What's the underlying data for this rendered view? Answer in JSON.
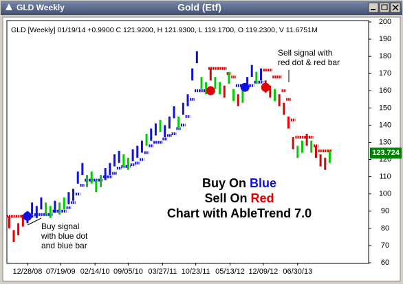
{
  "window": {
    "title": "GLD Weekly",
    "caption": "Gold (Etf)"
  },
  "chart_data": {
    "type": "ohlc-bars",
    "info": "GLD [Weekly] 01/19/14 +0.9900 C 121.9200, H 121.9300, L 119.1700, O 119.2300, V 11.6751M",
    "xlim": [
      -18,
      298
    ],
    "ylim": [
      60,
      200
    ],
    "xticks": [
      {
        "value": 0,
        "label": "12/28/08"
      },
      {
        "value": 29,
        "label": "07/19/09"
      },
      {
        "value": 59,
        "label": "02/14/10"
      },
      {
        "value": 88,
        "label": "09/05/10"
      },
      {
        "value": 118,
        "label": "03/27/11"
      },
      {
        "value": 147,
        "label": "10/23/11"
      },
      {
        "value": 177,
        "label": "05/13/12"
      },
      {
        "value": 206,
        "label": "12/09/12"
      },
      {
        "value": 236,
        "label": "06/30/13"
      }
    ],
    "yticks": [
      60,
      70,
      80,
      90,
      100,
      110,
      120,
      130,
      140,
      150,
      160,
      170,
      180,
      190,
      200
    ],
    "bars": {
      "x": [
        -16,
        -12,
        -8,
        -4,
        0,
        4,
        8,
        12,
        16,
        20,
        24,
        28,
        32,
        36,
        40,
        44,
        48,
        52,
        56,
        60,
        64,
        68,
        72,
        76,
        80,
        84,
        88,
        92,
        96,
        100,
        104,
        108,
        112,
        116,
        120,
        124,
        128,
        132,
        136,
        140,
        144,
        148,
        152,
        156,
        160,
        164,
        168,
        172,
        176,
        180,
        184,
        188,
        192,
        196,
        200,
        204,
        208,
        212,
        216,
        220,
        224,
        228,
        232,
        236,
        240,
        244,
        248,
        252,
        256,
        260,
        264
      ],
      "high": [
        87,
        79,
        83,
        88,
        90,
        95,
        93,
        98,
        95,
        93,
        96,
        95,
        98,
        101,
        103,
        113,
        118,
        111,
        113,
        108,
        111,
        115,
        118,
        123,
        125,
        123,
        121,
        126,
        128,
        131,
        135,
        138,
        141,
        143,
        140,
        145,
        151,
        145,
        153,
        158,
        173,
        183,
        168,
        165,
        173,
        168,
        165,
        163,
        171,
        161,
        158,
        160,
        168,
        175,
        171,
        173,
        166,
        163,
        161,
        158,
        153,
        145,
        133,
        128,
        131,
        135,
        131,
        128,
        123,
        121,
        125
      ],
      "low": [
        80,
        72,
        76,
        81,
        83,
        88,
        86,
        91,
        88,
        86,
        89,
        88,
        91,
        94,
        96,
        106,
        111,
        104,
        106,
        101,
        104,
        108,
        111,
        116,
        118,
        116,
        114,
        119,
        121,
        124,
        128,
        131,
        134,
        136,
        133,
        138,
        144,
        138,
        146,
        151,
        166,
        176,
        161,
        158,
        166,
        161,
        158,
        156,
        164,
        154,
        151,
        153,
        161,
        168,
        164,
        166,
        159,
        156,
        154,
        151,
        146,
        138,
        126,
        121,
        124,
        128,
        124,
        121,
        116,
        114,
        118
      ],
      "colors": [
        "#e00000",
        "#e00000",
        "#e00000",
        "#e00000",
        "#1010e0",
        "#1010e0",
        "#1010e0",
        "#1010e0",
        "#00cc00",
        "#00cc00",
        "#1010e0",
        "#00cc00",
        "#00cc00",
        "#1010e0",
        "#1010e0",
        "#1010e0",
        "#1010e0",
        "#00cc00",
        "#00cc00",
        "#00cc00",
        "#00cc00",
        "#1010e0",
        "#1010e0",
        "#1010e0",
        "#1010e0",
        "#00cc00",
        "#00cc00",
        "#1010e0",
        "#1010e0",
        "#1010e0",
        "#00cc00",
        "#1010e0",
        "#1010e0",
        "#00cc00",
        "#1010e0",
        "#1010e0",
        "#1010e0",
        "#00cc00",
        "#1010e0",
        "#1010e0",
        "#1010e0",
        "#1010e0",
        "#00cc00",
        "#00cc00",
        "#e00000",
        "#00cc00",
        "#00cc00",
        "#e00000",
        "#00cc00",
        "#00cc00",
        "#e00000",
        "#00cc00",
        "#1010e0",
        "#1010e0",
        "#00cc00",
        "#1010e0",
        "#e00000",
        "#e00000",
        "#00cc00",
        "#e00000",
        "#e00000",
        "#e00000",
        "#e00000",
        "#00cc00",
        "#00cc00",
        "#e00000",
        "#00cc00",
        "#e00000",
        "#e00000",
        "#e00000",
        "#00cc00"
      ]
    },
    "stops": {
      "values": [
        87,
        87,
        87,
        87,
        87,
        87,
        88,
        88,
        88,
        88,
        90,
        90,
        90,
        92,
        95,
        100,
        105,
        108,
        108,
        108,
        108,
        110,
        110,
        112,
        115,
        116,
        116,
        117,
        118,
        120,
        124,
        128,
        130,
        130,
        132,
        134,
        135,
        138,
        140,
        145,
        155,
        160,
        160,
        160,
        173,
        173,
        173,
        173,
        170,
        168,
        163,
        163,
        163,
        163,
        165,
        165,
        172,
        172,
        168,
        168,
        160,
        155,
        143,
        133,
        133,
        133,
        133,
        128,
        125,
        125,
        125
      ],
      "colors": [
        "#e00000",
        "#e00000",
        "#e00000",
        "#e00000",
        "#1010e0",
        "#1010e0",
        "#1010e0",
        "#1010e0",
        "#1010e0",
        "#1010e0",
        "#1010e0",
        "#1010e0",
        "#1010e0",
        "#1010e0",
        "#1010e0",
        "#1010e0",
        "#1010e0",
        "#1010e0",
        "#1010e0",
        "#1010e0",
        "#1010e0",
        "#1010e0",
        "#1010e0",
        "#1010e0",
        "#1010e0",
        "#1010e0",
        "#1010e0",
        "#1010e0",
        "#1010e0",
        "#1010e0",
        "#1010e0",
        "#1010e0",
        "#1010e0",
        "#1010e0",
        "#1010e0",
        "#1010e0",
        "#1010e0",
        "#1010e0",
        "#1010e0",
        "#1010e0",
        "#1010e0",
        "#1010e0",
        "#1010e0",
        "#1010e0",
        "#e00000",
        "#e00000",
        "#e00000",
        "#e00000",
        "#e00000",
        "#e00000",
        "#1010e0",
        "#1010e0",
        "#1010e0",
        "#1010e0",
        "#1010e0",
        "#1010e0",
        "#e00000",
        "#e00000",
        "#e00000",
        "#e00000",
        "#e00000",
        "#e00000",
        "#e00000",
        "#e00000",
        "#e00000",
        "#e00000",
        "#e00000",
        "#e00000",
        "#e00000",
        "#e00000",
        "#e00000"
      ]
    },
    "signals": {
      "x": [
        0,
        160,
        190,
        208
      ],
      "values": [
        87,
        160,
        162,
        162
      ],
      "colors": [
        "#1010e0",
        "#e00000",
        "#1010e0",
        "#e00000"
      ]
    },
    "last_price": 123.724,
    "annotations": {
      "buy": [
        "Buy signal",
        "with blue dot",
        "and blue bar"
      ],
      "sell": [
        "Sell signal with",
        "red dot & red bar"
      ]
    },
    "slogan": [
      {
        "text": "Buy On",
        "word": "Blue",
        "color": "#1010e0"
      },
      {
        "text": "Sell On",
        "word": "Red",
        "color": "#e00000"
      },
      {
        "text": "Chart with AbleTrend 7.0"
      }
    ]
  }
}
